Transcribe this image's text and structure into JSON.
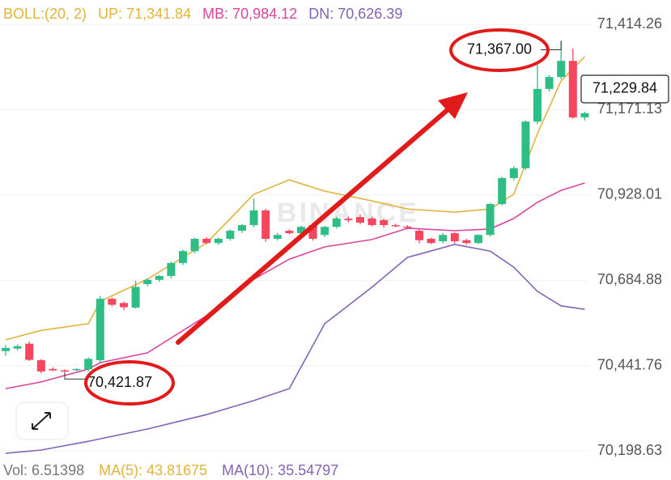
{
  "chart_data": {
    "type": "candlestick",
    "indicator": "BOLL:(20, 2)",
    "indicator_color": "#e0b43c",
    "legend": [
      {
        "label": "UP: 71,341.84",
        "color": "#e0b43c"
      },
      {
        "label": "MB: 70,984.12",
        "color": "#d9449c"
      },
      {
        "label": "DN: 70,626.39",
        "color": "#8363b5"
      }
    ],
    "candles": {
      "up_color": "#2ebd85",
      "down_color": "#f6465d",
      "open": [
        70483,
        70490,
        70504,
        70457,
        70432,
        70428,
        70430,
        70431,
        70457,
        70632,
        70620,
        70607,
        70674,
        70686,
        70697,
        70734,
        70768,
        70803,
        70791,
        70803,
        70826,
        70842,
        70884,
        70803,
        70826,
        70819,
        70842,
        70814,
        70837,
        70860,
        70865,
        70861,
        70856,
        70842,
        70838,
        70826,
        70803,
        70796,
        70819,
        70799,
        70791,
        70814,
        70902,
        70976,
        71004,
        71137,
        71230,
        71264,
        71310,
        71149
      ],
      "high": [
        70500,
        70502,
        70510,
        70460,
        70436,
        70431,
        70434,
        70465,
        70640,
        70636,
        70624,
        70683,
        70690,
        70700,
        70738,
        70772,
        70806,
        70808,
        70806,
        70830,
        70845,
        70918,
        70888,
        70820,
        70830,
        70840,
        70846,
        70840,
        70866,
        70866,
        70872,
        70866,
        70860,
        70846,
        70842,
        70832,
        70806,
        70820,
        70822,
        70803,
        70816,
        70905,
        70980,
        71010,
        71140,
        71299,
        71270,
        71367,
        71345,
        71165
      ],
      "low": [
        70470,
        70485,
        70455,
        70420,
        70426,
        70421.87,
        70426,
        70425,
        70450,
        70610,
        70600,
        70604,
        70668,
        70680,
        70690,
        70728,
        70762,
        70788,
        70786,
        70798,
        70820,
        70836,
        70795,
        70798,
        70815,
        70815,
        70798,
        70808,
        70832,
        70850,
        70845,
        70838,
        70835,
        70836,
        70830,
        70790,
        70788,
        70790,
        70790,
        70786,
        70788,
        70810,
        70898,
        70970,
        70998,
        71130,
        71222,
        71258,
        71145,
        71140
      ],
      "close": [
        70492,
        70497,
        70458,
        70425,
        70428,
        70426,
        70432,
        70461,
        70632,
        70615,
        70608,
        70666,
        70686,
        70697,
        70734,
        70768,
        70803,
        70791,
        70803,
        70826,
        70842,
        70884,
        70803,
        70814,
        70819,
        70837,
        70803,
        70837,
        70861,
        70856,
        70849,
        70842,
        70842,
        70841,
        70837,
        70799,
        70791,
        70814,
        70796,
        70791,
        70814,
        70902,
        70976,
        71004,
        71137,
        71230,
        71264,
        71310,
        71149,
        71161
      ]
    },
    "bands": [
      {
        "color": "#e0b43c",
        "x": [
          0,
          3,
          7,
          8,
          12,
          17,
          21,
          24,
          27,
          31,
          34,
          38,
          41,
          43,
          45,
          47,
          49
        ],
        "values": [
          70515,
          70542,
          70561,
          70625,
          70688,
          70791,
          70930,
          70971,
          70939,
          70911,
          70888,
          70879,
          70888,
          70930,
          71103,
          71253,
          71322
        ]
      },
      {
        "color": "#d9449c",
        "x": [
          0,
          3,
          7,
          8,
          12,
          17,
          21,
          24,
          27,
          31,
          34,
          38,
          41,
          43,
          45,
          47,
          49
        ],
        "values": [
          70376,
          70395,
          70432,
          70450,
          70478,
          70584,
          70688,
          70745,
          70780,
          70801,
          70833,
          70826,
          70831,
          70861,
          70907,
          70941,
          70962
        ]
      },
      {
        "color": "#8363b5",
        "x": [
          0,
          3,
          7,
          8,
          12,
          17,
          21,
          24,
          27,
          31,
          34,
          38,
          41,
          43,
          45,
          47,
          49
        ],
        "values": [
          70192,
          70201,
          70226,
          70233,
          70261,
          70302,
          70342,
          70376,
          70561,
          70665,
          70750,
          70787,
          70768,
          70722,
          70653,
          70612,
          70602
        ]
      }
    ],
    "ylim": [
      70168.7,
      71483.5
    ],
    "yticks": [
      {
        "value": 71414.26,
        "label": "71,414.26"
      },
      {
        "value": 71171.13,
        "label": "71,171.13"
      },
      {
        "value": 70928.01,
        "label": "70,928.01"
      },
      {
        "value": 70684.88,
        "label": "70,684.88"
      },
      {
        "value": 70441.76,
        "label": "70,441.76"
      },
      {
        "value": 70198.63,
        "label": "70,198.63"
      }
    ],
    "grid": true,
    "last_price": {
      "value": 71229.84,
      "label": "71,229.84"
    },
    "annotations": [
      {
        "index": 47,
        "value": 71367,
        "label": "71,367.00"
      },
      {
        "index": 5,
        "value": 70421.87,
        "label": "70,421.87"
      }
    ],
    "watermark": "BINANCE",
    "footer": [
      {
        "text": "Vol: 6.51398",
        "color": "#777777"
      },
      {
        "text": "MA(5): 43.81675",
        "color": "#e0b43c"
      },
      {
        "text": "MA(10): 35.54797",
        "color": "#8363b5"
      }
    ]
  }
}
